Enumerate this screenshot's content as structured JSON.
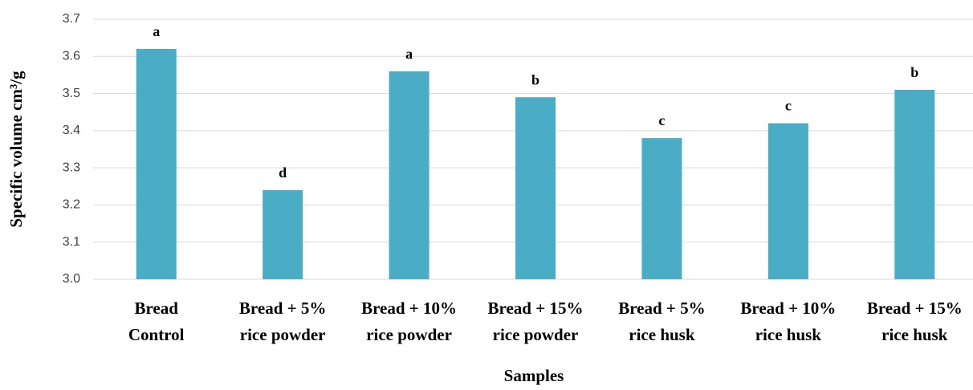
{
  "chart_data": {
    "type": "bar",
    "y_label": "Specific volume cm³/g",
    "x_label": "Samples",
    "categories": [
      [
        "Bread",
        "Control"
      ],
      [
        "Bread + 5%",
        "rice powder"
      ],
      [
        "Bread + 10%",
        "rice powder"
      ],
      [
        "Bread + 15%",
        "rice powder"
      ],
      [
        "Bread + 5%",
        "rice husk"
      ],
      [
        "Bread + 10%",
        "rice husk"
      ],
      [
        "Bread + 15%",
        "rice husk"
      ]
    ],
    "values": [
      3.62,
      3.24,
      3.56,
      3.49,
      3.38,
      3.42,
      3.51
    ],
    "annotations": [
      "a",
      "d",
      "a",
      "b",
      "c",
      "c",
      "b"
    ],
    "color": "#4bacc6",
    "ylim": [
      3.0,
      3.7
    ],
    "yticks": [
      {
        "value": 3,
        "label": "3.0"
      },
      3.1,
      3.2,
      3.3,
      3.4,
      3.5,
      3.6,
      3.7
    ],
    "grid": true
  }
}
